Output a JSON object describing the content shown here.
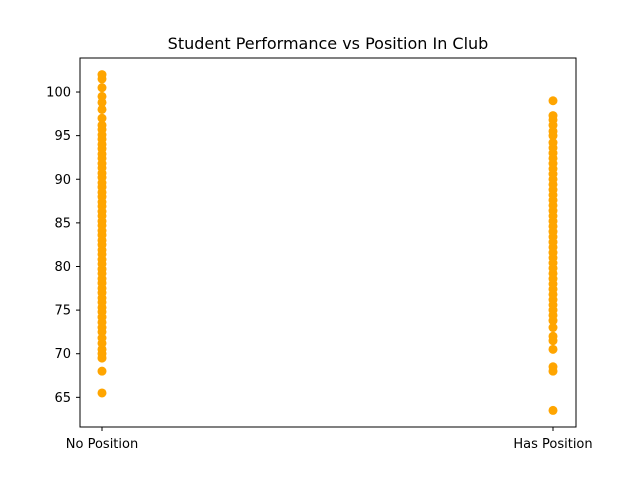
{
  "chart_data": {
    "type": "scatter",
    "title": "Student Performance vs Position In Club",
    "xlabel": "",
    "ylabel": "",
    "categories": [
      "No Position",
      "Has Position"
    ],
    "ylim": [
      61.6,
      103.9
    ],
    "y_ticks": [
      65,
      70,
      75,
      80,
      85,
      90,
      95,
      100
    ],
    "grid": false,
    "marker_color": "#ffa500",
    "series": [
      {
        "category_values": [
          [
            65.5,
            68.0,
            69.5,
            70.0,
            70.5,
            71.2,
            71.8,
            72.5,
            73.0,
            73.6,
            74.2,
            74.8,
            75.3,
            75.9,
            76.4,
            77.0,
            77.5,
            78.1,
            78.6,
            79.2,
            79.7,
            80.3,
            80.8,
            81.4,
            81.9,
            82.5,
            83.0,
            83.6,
            84.1,
            84.7,
            85.2,
            85.8,
            86.3,
            86.9,
            87.4,
            88.0,
            88.5,
            89.1,
            89.6,
            90.2,
            90.7,
            91.3,
            91.8,
            92.4,
            92.9,
            93.5,
            94.0,
            94.6,
            95.1,
            95.7,
            96.2,
            97.0,
            98.0,
            98.8,
            99.5,
            100.5,
            101.5,
            102.0
          ],
          [
            63.5,
            68.0,
            68.5,
            70.5,
            71.5,
            72.0,
            73.0,
            73.8,
            74.4,
            75.0,
            75.6,
            76.2,
            76.8,
            77.4,
            78.0,
            78.6,
            79.2,
            79.8,
            80.4,
            81.0,
            81.6,
            82.2,
            82.8,
            83.4,
            84.0,
            84.6,
            85.2,
            85.8,
            86.4,
            87.0,
            87.6,
            88.2,
            88.8,
            89.4,
            90.0,
            90.6,
            91.2,
            91.8,
            92.4,
            93.0,
            93.6,
            94.2,
            95.0,
            95.5,
            96.2,
            96.8,
            97.3,
            99.0
          ]
        ]
      }
    ]
  }
}
